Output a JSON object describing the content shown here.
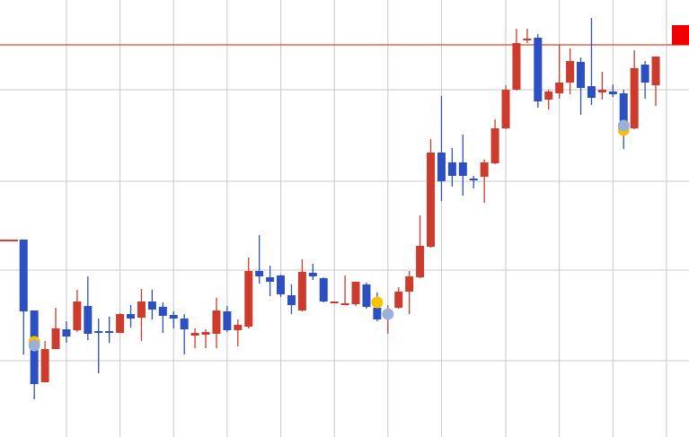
{
  "chart_data": {
    "type": "candlestick",
    "up_color": "#cc3b2b",
    "down_color": "#2c4fc2",
    "grid": true,
    "ylim": [
      0,
      487
    ],
    "yticks": [
      85,
      186,
      285,
      387
    ],
    "xlim": [
      -2.2,
      62.1
    ],
    "xticks": [
      4,
      9,
      14,
      19,
      24,
      29,
      34,
      39,
      45,
      50,
      55,
      60
    ],
    "open": [
      220,
      141,
      61,
      98,
      120,
      119,
      146,
      118,
      118,
      116,
      137,
      133,
      151,
      145,
      136,
      132,
      113,
      114,
      115,
      140,
      119,
      123,
      185,
      178,
      180,
      158,
      141,
      183,
      177,
      149,
      147,
      148,
      170,
      144,
      135,
      144,
      162,
      178,
      212,
      317,
      306,
      306,
      288,
      290,
      305,
      344,
      387,
      442,
      445,
      376,
      383,
      395,
      418,
      391,
      384,
      385,
      383,
      344,
      415,
      392
    ],
    "high": [
      220,
      141,
      107,
      144,
      129,
      164,
      179,
      132,
      134,
      138,
      147,
      165,
      164,
      150,
      140,
      137,
      121,
      120,
      155,
      146,
      131,
      200,
      225,
      191,
      181,
      170,
      198,
      193,
      178,
      151,
      180,
      173,
      172,
      161,
      147,
      167,
      185,
      247,
      332,
      380,
      322,
      337,
      291,
      309,
      354,
      392,
      455,
      455,
      449,
      387,
      437,
      433,
      423,
      467,
      407,
      393,
      387,
      431,
      419,
      424
    ],
    "low": [
      92,
      42,
      61,
      98,
      105,
      117,
      108,
      71,
      105,
      116,
      122,
      107,
      131,
      116,
      121,
      92,
      99,
      99,
      99,
      117,
      101,
      121,
      171,
      157,
      156,
      137,
      140,
      175,
      150,
      149,
      147,
      146,
      143,
      129,
      115,
      143,
      137,
      177,
      211,
      263,
      279,
      269,
      277,
      261,
      304,
      343,
      386,
      439,
      367,
      365,
      377,
      382,
      359,
      370,
      376,
      379,
      321,
      343,
      377,
      369
    ],
    "close": [
      140,
      59,
      98,
      121,
      112,
      151,
      115,
      116,
      116,
      137,
      132,
      151,
      142,
      135,
      132,
      120,
      116,
      117,
      141,
      119,
      125,
      185,
      179,
      173,
      159,
      147,
      184,
      179,
      151,
      151,
      149,
      173,
      145,
      131,
      138,
      162,
      179,
      213,
      317,
      285,
      291,
      291,
      286,
      306,
      344,
      387,
      439,
      444,
      374,
      385,
      395,
      419,
      389,
      378,
      387,
      382,
      347,
      411,
      395,
      424
    ],
    "level_line": {
      "value": 437,
      "color": "#e8402a"
    },
    "prev_line": {
      "value": 219,
      "color": "#d9432f"
    },
    "markers": [
      {
        "color": "#f7c300",
        "x": [
          1,
          33,
          56
        ],
        "values": [
          106,
          150,
          342
        ]
      },
      {
        "color": "#9bb0d6",
        "x": [
          1,
          34,
          56
        ],
        "values": [
          102,
          137,
          347
        ]
      }
    ]
  }
}
